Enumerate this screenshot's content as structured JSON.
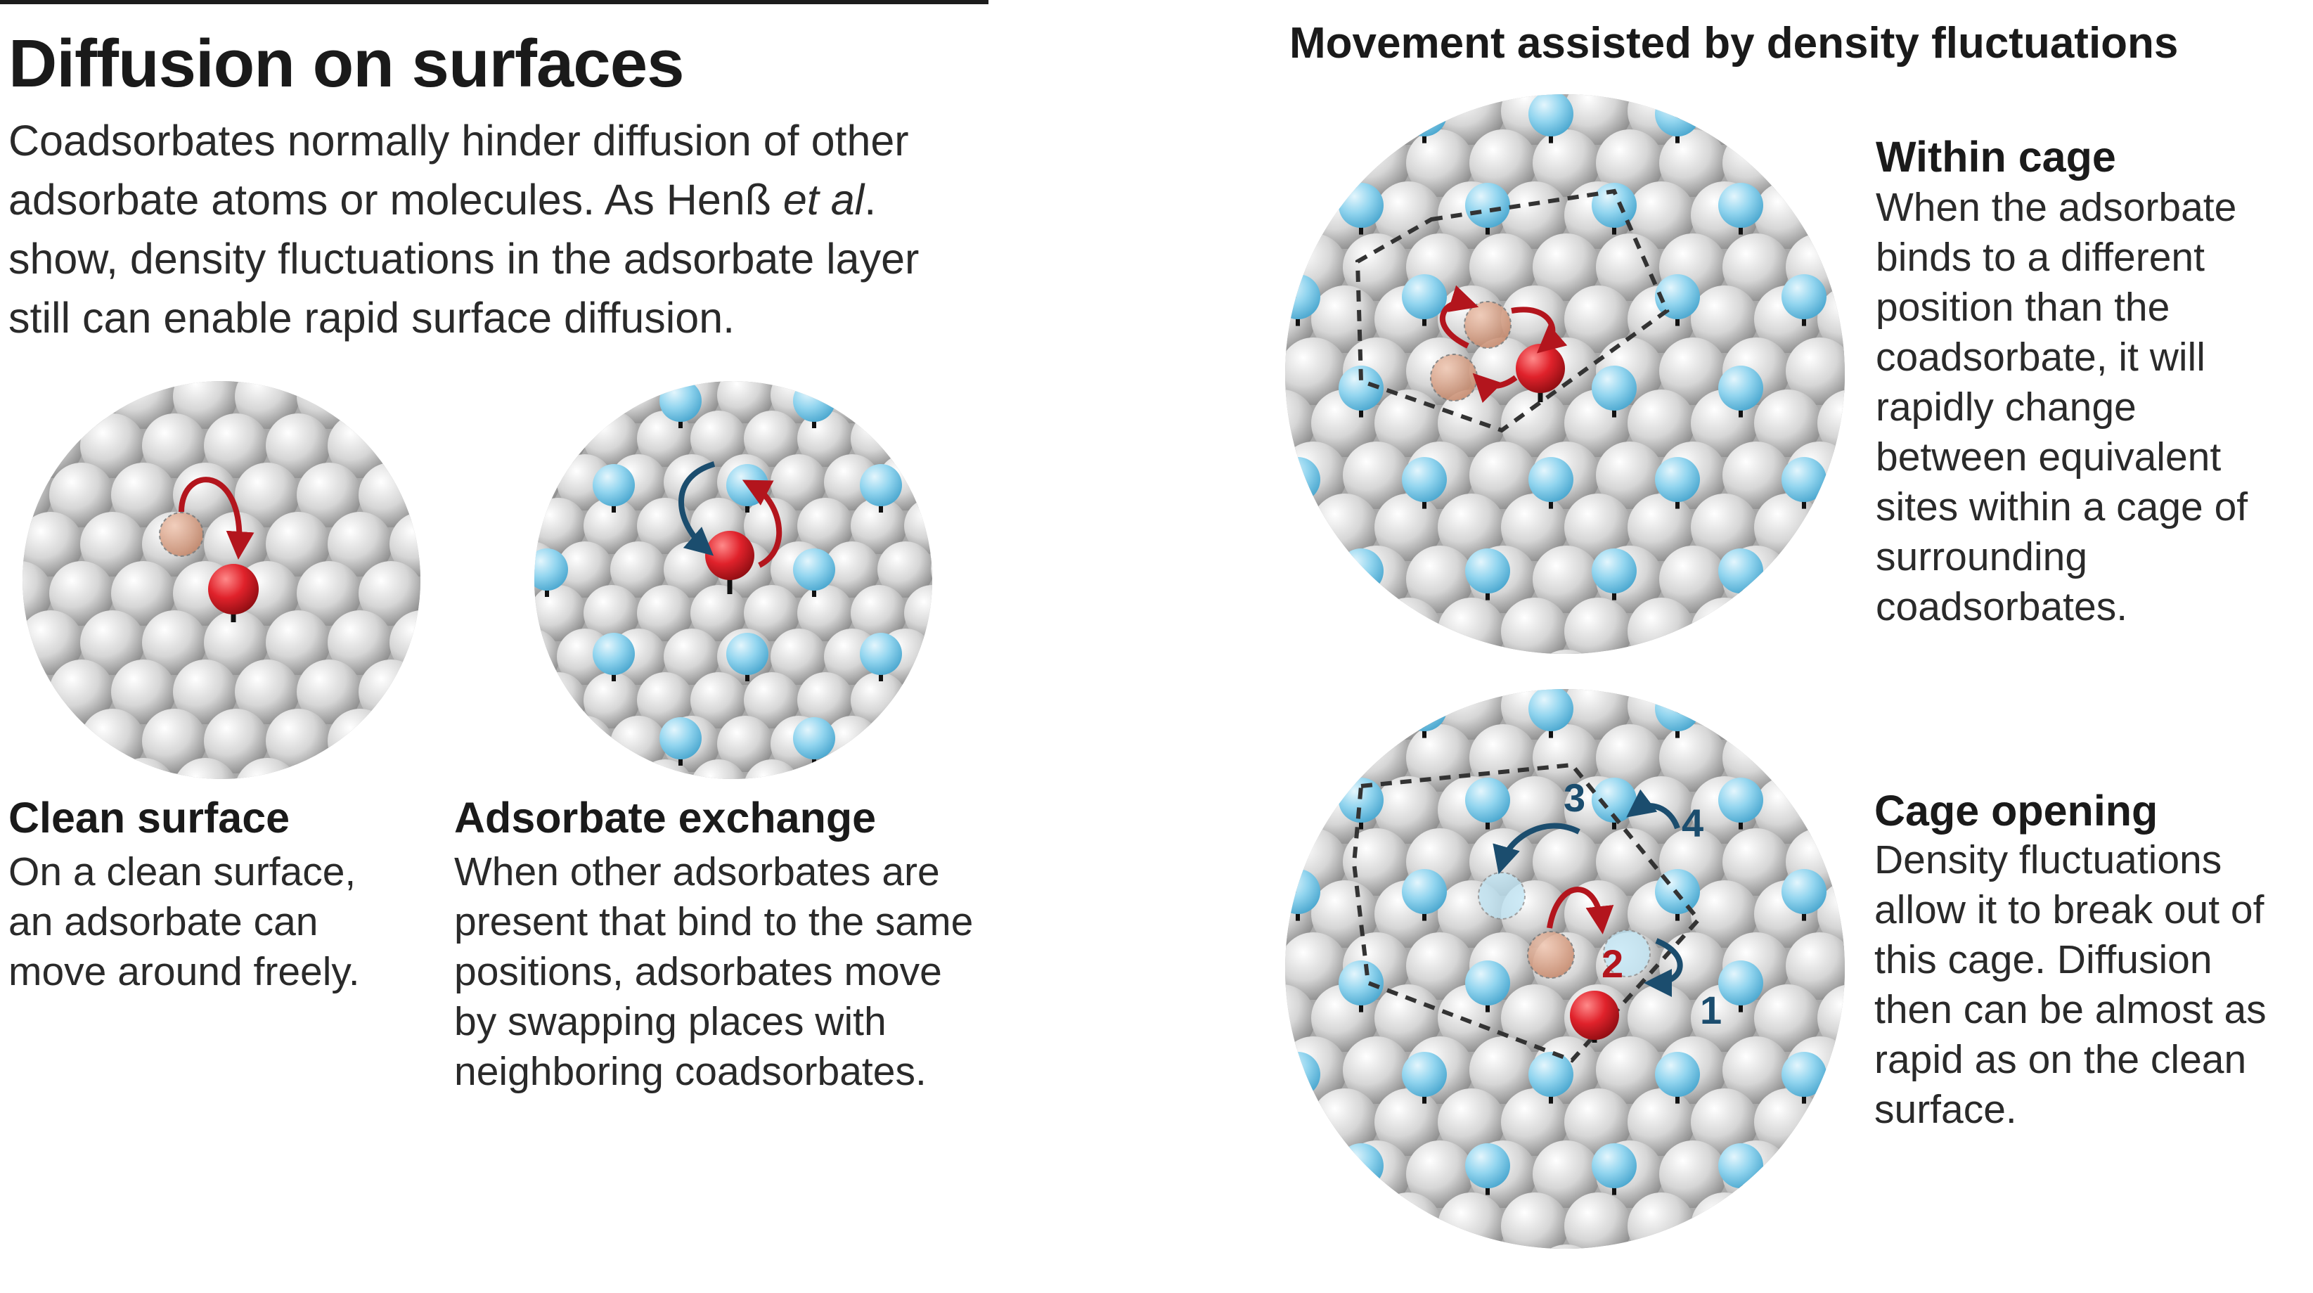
{
  "header": {
    "title": "Diffusion on surfaces",
    "intro_part1": "Coadsorbates normally hinder diffusion of other adsorbate atoms or molecules. As Henß ",
    "intro_italic": "et al",
    "intro_part2": ". show, density fluctuations in the adsorbate layer still can enable rapid surface diffusion."
  },
  "right_heading": "Movement assisted by density fluctuations",
  "panels": {
    "clean": {
      "title": "Clean surface",
      "body": "On a clean surface, an adsorbate can move around freely."
    },
    "exchange": {
      "title": "Adsorbate exchange",
      "body": "When other adsorbates are present that bind to the same positions, adsorbates move by swapping places with neighboring coadsorbates."
    },
    "cage": {
      "title": "Within cage",
      "body": "When the adsorbate binds to a different position than the coadsorbate, it will rapidly change between equivalent sites within a cage of surrounding coadsorbates."
    },
    "opening": {
      "title": "Cage opening",
      "body": "Density fluctuations allow it to break out of this cage. Diffusion then can be almost as rapid as on the clean surface.",
      "step_labels": [
        "1",
        "2",
        "3",
        "4"
      ]
    }
  },
  "colors": {
    "adsorbate": "#e0222b",
    "coadsorbate": "#8fd3ee",
    "surface_atom": "#cfcfcf",
    "arrow_red": "#b3151d",
    "arrow_blue": "#1b4d6e",
    "cage_line": "#333333"
  }
}
